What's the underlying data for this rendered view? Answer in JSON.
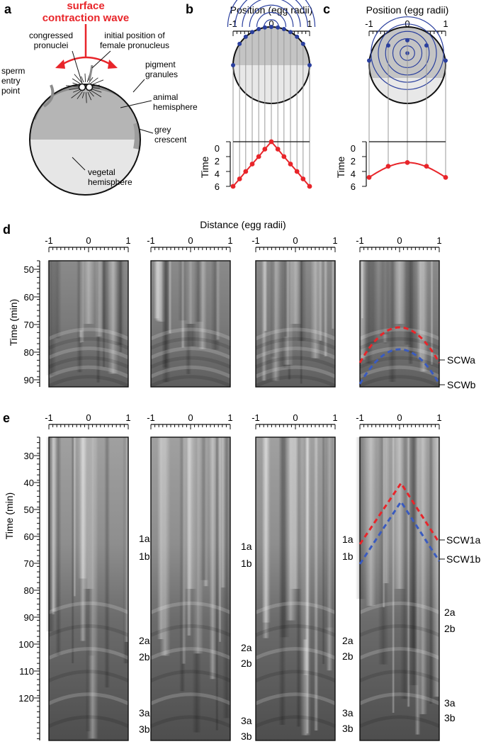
{
  "panel_a": {
    "letter": "a",
    "title_line1": "surface",
    "title_line2": "contraction wave",
    "label_congressed_1": "congressed",
    "label_congressed_2": "pronuclei",
    "label_initial_1": "initial position of",
    "label_initial_2": "female pronucleus",
    "label_sperm_1": "sperm",
    "label_sperm_2": "entry",
    "label_sperm_3": "point",
    "label_pigment_1": "pigment",
    "label_pigment_2": "granules",
    "label_animal_1": "animal",
    "label_animal_2": "hemisphere",
    "label_grey_1": "grey",
    "label_grey_2": "crescent",
    "label_vegetal_1": "vegetal",
    "label_vegetal_2": "hemisphere",
    "colors": {
      "red": "#e8252a",
      "grey_dark": "#8c8c8c",
      "grey_mid": "#b5b5b5",
      "grey_light": "#e6e6e6"
    }
  },
  "panel_b": {
    "letter": "b",
    "xlabel": "Position (egg radii)",
    "ylabel": "Time",
    "xticks": [
      "-1",
      "0",
      "1"
    ],
    "yticks": [
      "0",
      "2",
      "4",
      "6"
    ]
  },
  "panel_c": {
    "letter": "c",
    "xlabel": "Position (egg radii)",
    "ylabel": "Time",
    "xticks": [
      "-1",
      "0",
      "1"
    ],
    "yticks": [
      "0",
      "2",
      "4",
      "6"
    ]
  },
  "panel_d": {
    "letter": "d",
    "xlabel": "Distance (egg radii)",
    "ylabel": "Time (min)",
    "xticks": [
      "-1",
      "0",
      "1"
    ],
    "yticks": [
      "50",
      "60",
      "70",
      "80",
      "90"
    ],
    "wave_labels": [
      "SCWa",
      "SCWb"
    ]
  },
  "panel_e": {
    "letter": "e",
    "ylabel": "Time (min)",
    "xticks": [
      "-1",
      "0",
      "1"
    ],
    "yticks": [
      "30",
      "40",
      "50",
      "60",
      "70",
      "80",
      "90",
      "100",
      "110",
      "120"
    ],
    "col1_labels": [
      "1a",
      "1b",
      "2a",
      "2b",
      "3a",
      "3b"
    ],
    "col2_labels": [
      "1a",
      "1b",
      "2a",
      "2b",
      "3a",
      "3b"
    ],
    "col3_labels": [
      "1a",
      "1b",
      "2a",
      "2b",
      "3a",
      "3b"
    ],
    "col4_labels": [
      "SCW1a",
      "SCW1b",
      "2a",
      "2b",
      "3a",
      "3b"
    ]
  },
  "chart_data": [
    {
      "type": "line",
      "panel": "b",
      "xlabel": "Position (egg radii)",
      "ylabel": "Time",
      "xlim": [
        -1,
        1
      ],
      "ylim": [
        0,
        6
      ],
      "series": [
        {
          "x": [
            -1,
            -0.83,
            -0.67,
            -0.5,
            -0.33,
            -0.17,
            0,
            0.17,
            0.33,
            0.5,
            0.67,
            0.83,
            1
          ],
          "y": [
            6,
            5,
            4,
            3,
            2,
            1,
            0,
            1,
            2,
            3,
            4,
            5,
            6
          ]
        }
      ]
    },
    {
      "type": "line",
      "panel": "c",
      "xlabel": "Position (egg radii)",
      "ylabel": "Time",
      "xlim": [
        -1,
        1
      ],
      "ylim": [
        0,
        6
      ],
      "series": [
        {
          "x": [
            -1,
            -0.5,
            0,
            0.5,
            1
          ],
          "y": [
            4.8,
            3.3,
            2.8,
            3.3,
            4.8
          ]
        }
      ]
    }
  ]
}
